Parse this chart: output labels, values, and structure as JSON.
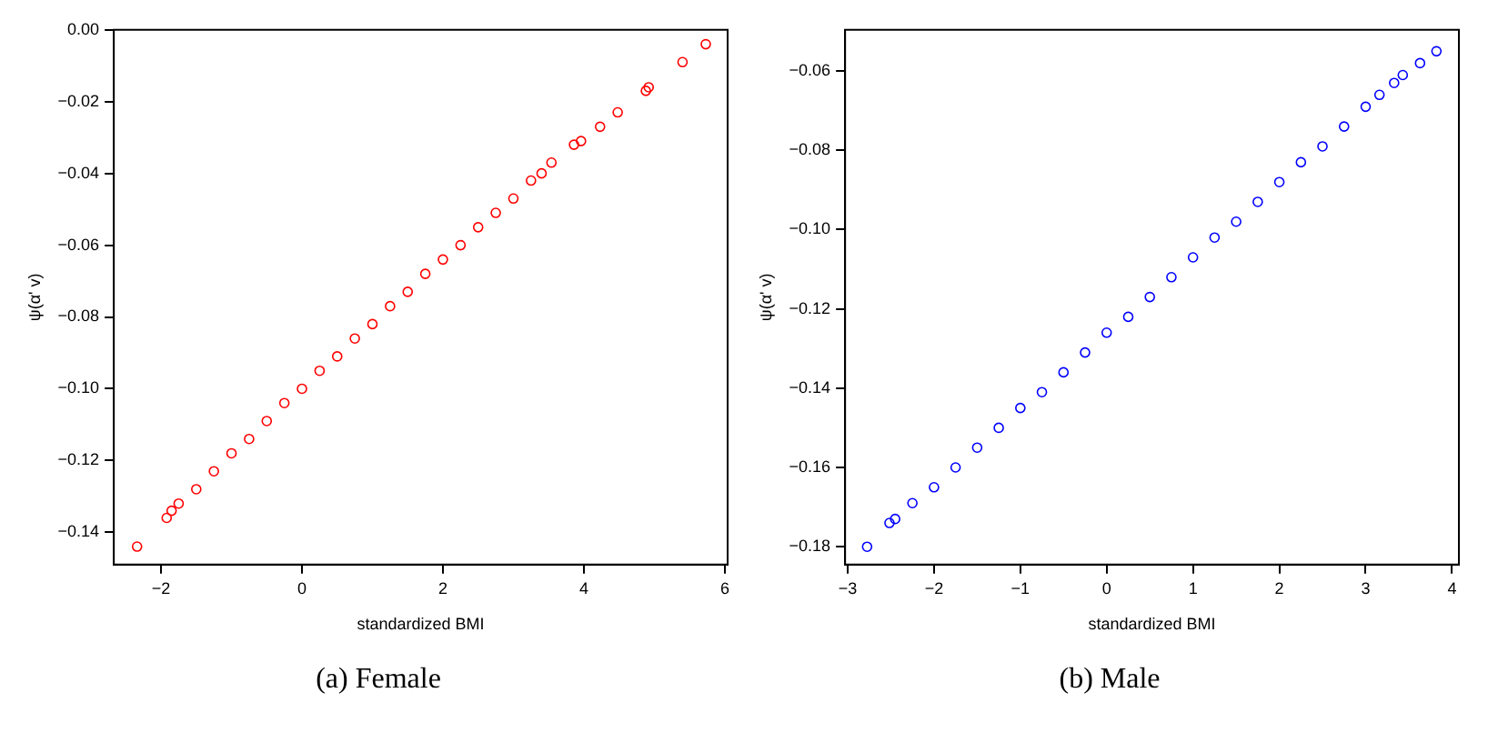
{
  "chart_data": [
    {
      "type": "scatter",
      "title": "(a) Female",
      "xlabel": "standardized BMI",
      "ylabel": "ψ(α' v)",
      "marker": "circle",
      "xlim": [
        -2.67,
        6.04
      ],
      "ylim": [
        -0.149,
        0.0
      ],
      "xticks": [
        {
          "value": -2,
          "label": "−2"
        },
        0,
        2,
        4,
        6
      ],
      "yticks": [
        {
          "value": -0.14,
          "label": "−0.14"
        },
        {
          "value": -0.12,
          "label": "−0.12"
        },
        {
          "value": -0.1,
          "label": "−0.10"
        },
        {
          "value": -0.08,
          "label": "−0.08"
        },
        {
          "value": -0.06,
          "label": "−0.06"
        },
        {
          "value": -0.04,
          "label": "−0.04"
        },
        {
          "value": -0.02,
          "label": "−0.02"
        },
        {
          "value": 0,
          "label": "0.00"
        }
      ],
      "series": [
        {
          "color": "#ff0000",
          "x": [
            -2.34,
            -1.92,
            -1.85,
            -1.75,
            -1.5,
            -1.25,
            -1,
            -0.75,
            -0.5,
            -0.25,
            0,
            0.25,
            0.5,
            0.75,
            1,
            1.25,
            1.5,
            1.75,
            2,
            2.25,
            2.5,
            2.75,
            3,
            3.25,
            3.4,
            3.54,
            3.86,
            3.96,
            4.23,
            4.48,
            4.88,
            4.92,
            5.4,
            5.73
          ],
          "values": [
            -0.144,
            -0.136,
            -0.134,
            -0.132,
            -0.128,
            -0.123,
            -0.118,
            -0.114,
            -0.109,
            -0.104,
            -0.1,
            -0.095,
            -0.091,
            -0.086,
            -0.082,
            -0.077,
            -0.073,
            -0.068,
            -0.064,
            -0.06,
            -0.055,
            -0.051,
            -0.047,
            -0.042,
            -0.04,
            -0.037,
            -0.032,
            -0.031,
            -0.027,
            -0.023,
            -0.017,
            -0.016,
            -0.009,
            -0.004
          ]
        }
      ]
    },
    {
      "type": "scatter",
      "title": "(b) Male",
      "xlabel": "standardized BMI",
      "ylabel": "ψ(α' v)",
      "marker": "circle",
      "xlim": [
        -3.03,
        4.08
      ],
      "ylim": [
        -0.1845,
        -0.0496
      ],
      "xticks": [
        {
          "value": -3,
          "label": "−3"
        },
        {
          "value": -2,
          "label": "−2"
        },
        {
          "value": -1,
          "label": "−1"
        },
        0,
        1,
        2,
        3,
        4
      ],
      "yticks": [
        {
          "value": -0.18,
          "label": "−0.18"
        },
        {
          "value": -0.16,
          "label": "−0.16"
        },
        {
          "value": -0.14,
          "label": "−0.14"
        },
        {
          "value": -0.12,
          "label": "−0.12"
        },
        {
          "value": -0.1,
          "label": "−0.10"
        },
        {
          "value": -0.08,
          "label": "−0.08"
        },
        {
          "value": -0.06,
          "label": "−0.06"
        }
      ],
      "series": [
        {
          "color": "#0000ff",
          "x": [
            -2.775,
            -2.516,
            -2.45,
            -2.25,
            -2,
            -1.75,
            -1.5,
            -1.25,
            -1,
            -0.75,
            -0.5,
            -0.25,
            0,
            0.25,
            0.5,
            0.75,
            1,
            1.25,
            1.5,
            1.75,
            2,
            2.25,
            2.5,
            2.75,
            3,
            3.16,
            3.33,
            3.43,
            3.63,
            3.82
          ],
          "values": [
            -0.18,
            -0.174,
            -0.173,
            -0.169,
            -0.165,
            -0.16,
            -0.155,
            -0.15,
            -0.145,
            -0.141,
            -0.136,
            -0.131,
            -0.126,
            -0.122,
            -0.117,
            -0.112,
            -0.107,
            -0.102,
            -0.098,
            -0.093,
            -0.088,
            -0.083,
            -0.079,
            -0.074,
            -0.069,
            -0.066,
            -0.063,
            -0.061,
            -0.058,
            -0.055
          ]
        }
      ]
    }
  ]
}
